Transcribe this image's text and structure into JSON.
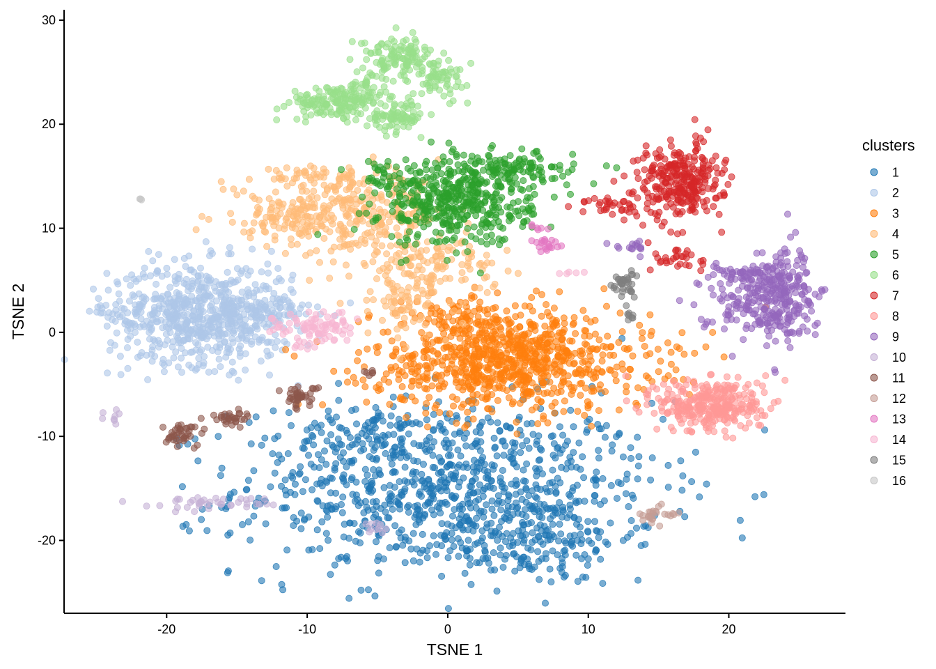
{
  "chart_data": {
    "type": "scatter",
    "title": "",
    "xlabel": "TSNE 1",
    "ylabel": "TSNE 2",
    "xlim": [
      -27.3,
      28.3
    ],
    "ylim": [
      -27,
      31
    ],
    "xticks": [
      -20,
      -10,
      0,
      10,
      20
    ],
    "yticks": [
      -20,
      -10,
      0,
      10,
      20,
      30
    ],
    "x_tick_labels": [
      "-20",
      "-10",
      "0",
      "10",
      "20"
    ],
    "y_tick_labels": [
      "-20",
      "-10",
      "0",
      "10",
      "20",
      "30"
    ],
    "grid": false,
    "point_opacity": 0.6,
    "legend": {
      "title": "clusters",
      "placement": "right"
    },
    "series": [
      {
        "name": "1",
        "color": "#1f77b4",
        "clusters": [
          {
            "cx": 0,
            "cy": -15,
            "sx": 7.5,
            "sy": 4.2,
            "n": 900
          },
          {
            "cx": 6,
            "cy": -20,
            "sx": 3.5,
            "sy": 2.2,
            "n": 150
          },
          {
            "cx": -5,
            "cy": -10,
            "sx": 3,
            "sy": 1.2,
            "n": 80
          }
        ]
      },
      {
        "name": "2",
        "color": "#aec7e8",
        "clusters": [
          {
            "cx": -17.5,
            "cy": 1.8,
            "sx": 3.3,
            "sy": 2.4,
            "n": 700
          },
          {
            "cx": -12.5,
            "cy": 2,
            "sx": 1.2,
            "sy": 0.8,
            "n": 40
          },
          {
            "cx": -24.8,
            "cy": 2.4,
            "sx": 0.2,
            "sy": 0.2,
            "n": 3
          }
        ]
      },
      {
        "name": "3",
        "color": "#ff7f0e",
        "clusters": [
          {
            "cx": 4.5,
            "cy": -2.8,
            "sx": 5,
            "sy": 2.4,
            "n": 850
          },
          {
            "cx": 1.5,
            "cy": 1.5,
            "sx": 2.5,
            "sy": 1.1,
            "n": 80
          }
        ]
      },
      {
        "name": "4",
        "color": "#ffbb78",
        "clusters": [
          {
            "cx": -6.5,
            "cy": 11.5,
            "sx": 3.2,
            "sy": 1.8,
            "n": 300
          },
          {
            "cx": -12,
            "cy": 11,
            "sx": 2.2,
            "sy": 1,
            "n": 80
          },
          {
            "cx": -1.5,
            "cy": 6.5,
            "sx": 2.5,
            "sy": 1.6,
            "n": 150
          },
          {
            "cx": -3,
            "cy": 2.5,
            "sx": 1.1,
            "sy": 1.6,
            "n": 60
          },
          {
            "cx": -10,
            "cy": 15,
            "sx": 2.2,
            "sy": 0.5,
            "n": 40
          }
        ]
      },
      {
        "name": "5",
        "color": "#2ca02c",
        "clusters": [
          {
            "cx": 0.5,
            "cy": 12.5,
            "sx": 2.7,
            "sy": 2.1,
            "n": 450
          },
          {
            "cx": 4.5,
            "cy": 15.5,
            "sx": 2.3,
            "sy": 0.9,
            "n": 120
          },
          {
            "cx": -4.5,
            "cy": 15.5,
            "sx": 1,
            "sy": 0.6,
            "n": 20
          }
        ]
      },
      {
        "name": "6",
        "color": "#98df8a",
        "clusters": [
          {
            "cx": -8,
            "cy": 22,
            "sx": 1.6,
            "sy": 0.8,
            "n": 150
          },
          {
            "cx": -3.5,
            "cy": 26.5,
            "sx": 1.3,
            "sy": 0.9,
            "n": 120
          },
          {
            "cx": -3.5,
            "cy": 20.8,
            "sx": 1,
            "sy": 0.7,
            "n": 80
          },
          {
            "cx": -0.5,
            "cy": 24.5,
            "sx": 1,
            "sy": 0.9,
            "n": 60
          },
          {
            "cx": -5.5,
            "cy": 23.5,
            "sx": 0.9,
            "sy": 0.8,
            "n": 40
          }
        ]
      },
      {
        "name": "7",
        "color": "#d62728",
        "clusters": [
          {
            "cx": 16.5,
            "cy": 14.5,
            "sx": 1.5,
            "sy": 1.8,
            "n": 280
          },
          {
            "cx": 11.5,
            "cy": 12.2,
            "sx": 1,
            "sy": 0.5,
            "n": 30
          },
          {
            "cx": 16.5,
            "cy": 7,
            "sx": 0.9,
            "sy": 0.8,
            "n": 30
          },
          {
            "cx": 14,
            "cy": 12,
            "sx": 0.6,
            "sy": 0.6,
            "n": 10
          }
        ]
      },
      {
        "name": "8",
        "color": "#ff9896",
        "clusters": [
          {
            "cx": 18.8,
            "cy": -7,
            "sx": 1.9,
            "sy": 1.3,
            "n": 320
          }
        ]
      },
      {
        "name": "9",
        "color": "#9467bd",
        "clusters": [
          {
            "cx": 21.5,
            "cy": 3,
            "sx": 1.8,
            "sy": 1.5,
            "n": 150
          },
          {
            "cx": 24,
            "cy": 4,
            "sx": 1,
            "sy": 2.5,
            "n": 150
          },
          {
            "cx": 21.8,
            "cy": 5.5,
            "sx": 2,
            "sy": 0.6,
            "n": 60
          },
          {
            "cx": 13,
            "cy": 8.3,
            "sx": 0.7,
            "sy": 0.3,
            "n": 15
          }
        ]
      },
      {
        "name": "10",
        "color": "#c5b0d5",
        "clusters": [
          {
            "cx": -17,
            "cy": -16.4,
            "sx": 2.2,
            "sy": 0.3,
            "n": 40
          },
          {
            "cx": -23.8,
            "cy": -8,
            "sx": 0.5,
            "sy": 0.5,
            "n": 8
          },
          {
            "cx": -5,
            "cy": -18.8,
            "sx": 0.6,
            "sy": 0.3,
            "n": 10
          }
        ]
      },
      {
        "name": "11",
        "color": "#8c564b",
        "clusters": [
          {
            "cx": -10.5,
            "cy": -6.2,
            "sx": 0.6,
            "sy": 0.5,
            "n": 40
          },
          {
            "cx": -19,
            "cy": -9.8,
            "sx": 0.8,
            "sy": 0.6,
            "n": 40
          },
          {
            "cx": -15.5,
            "cy": -8.2,
            "sx": 0.7,
            "sy": 0.4,
            "n": 30
          },
          {
            "cx": -5.4,
            "cy": -4,
            "sx": 0.3,
            "sy": 0.2,
            "n": 6
          }
        ]
      },
      {
        "name": "12",
        "color": "#c49c94",
        "clusters": [
          {
            "cx": 14.5,
            "cy": -17.5,
            "sx": 0.5,
            "sy": 0.6,
            "n": 20
          },
          {
            "cx": 16,
            "cy": -17.5,
            "sx": 0.3,
            "sy": 0.2,
            "n": 6
          }
        ]
      },
      {
        "name": "13",
        "color": "#e377c2",
        "clusters": [
          {
            "cx": 7,
            "cy": 8.3,
            "sx": 0.6,
            "sy": 0.3,
            "n": 20
          },
          {
            "cx": 6.5,
            "cy": 10,
            "sx": 0.4,
            "sy": 0.2,
            "n": 6
          }
        ]
      },
      {
        "name": "14",
        "color": "#f7b6d2",
        "clusters": [
          {
            "cx": -9.5,
            "cy": 0.3,
            "sx": 1.5,
            "sy": 0.9,
            "n": 90
          },
          {
            "cx": 8.8,
            "cy": 5.8,
            "sx": 0.5,
            "sy": 0.2,
            "n": 5
          }
        ]
      },
      {
        "name": "15",
        "color": "#7f7f7f",
        "clusters": [
          {
            "cx": 12.5,
            "cy": 4.5,
            "sx": 0.4,
            "sy": 0.6,
            "n": 35
          },
          {
            "cx": 13,
            "cy": 1.8,
            "sx": 0.2,
            "sy": 0.3,
            "n": 8
          }
        ]
      },
      {
        "name": "16",
        "color": "#c7c7c7",
        "clusters": [
          {
            "cx": -21.8,
            "cy": 12.8,
            "sx": 0.08,
            "sy": 0.08,
            "n": 3
          }
        ]
      }
    ]
  }
}
